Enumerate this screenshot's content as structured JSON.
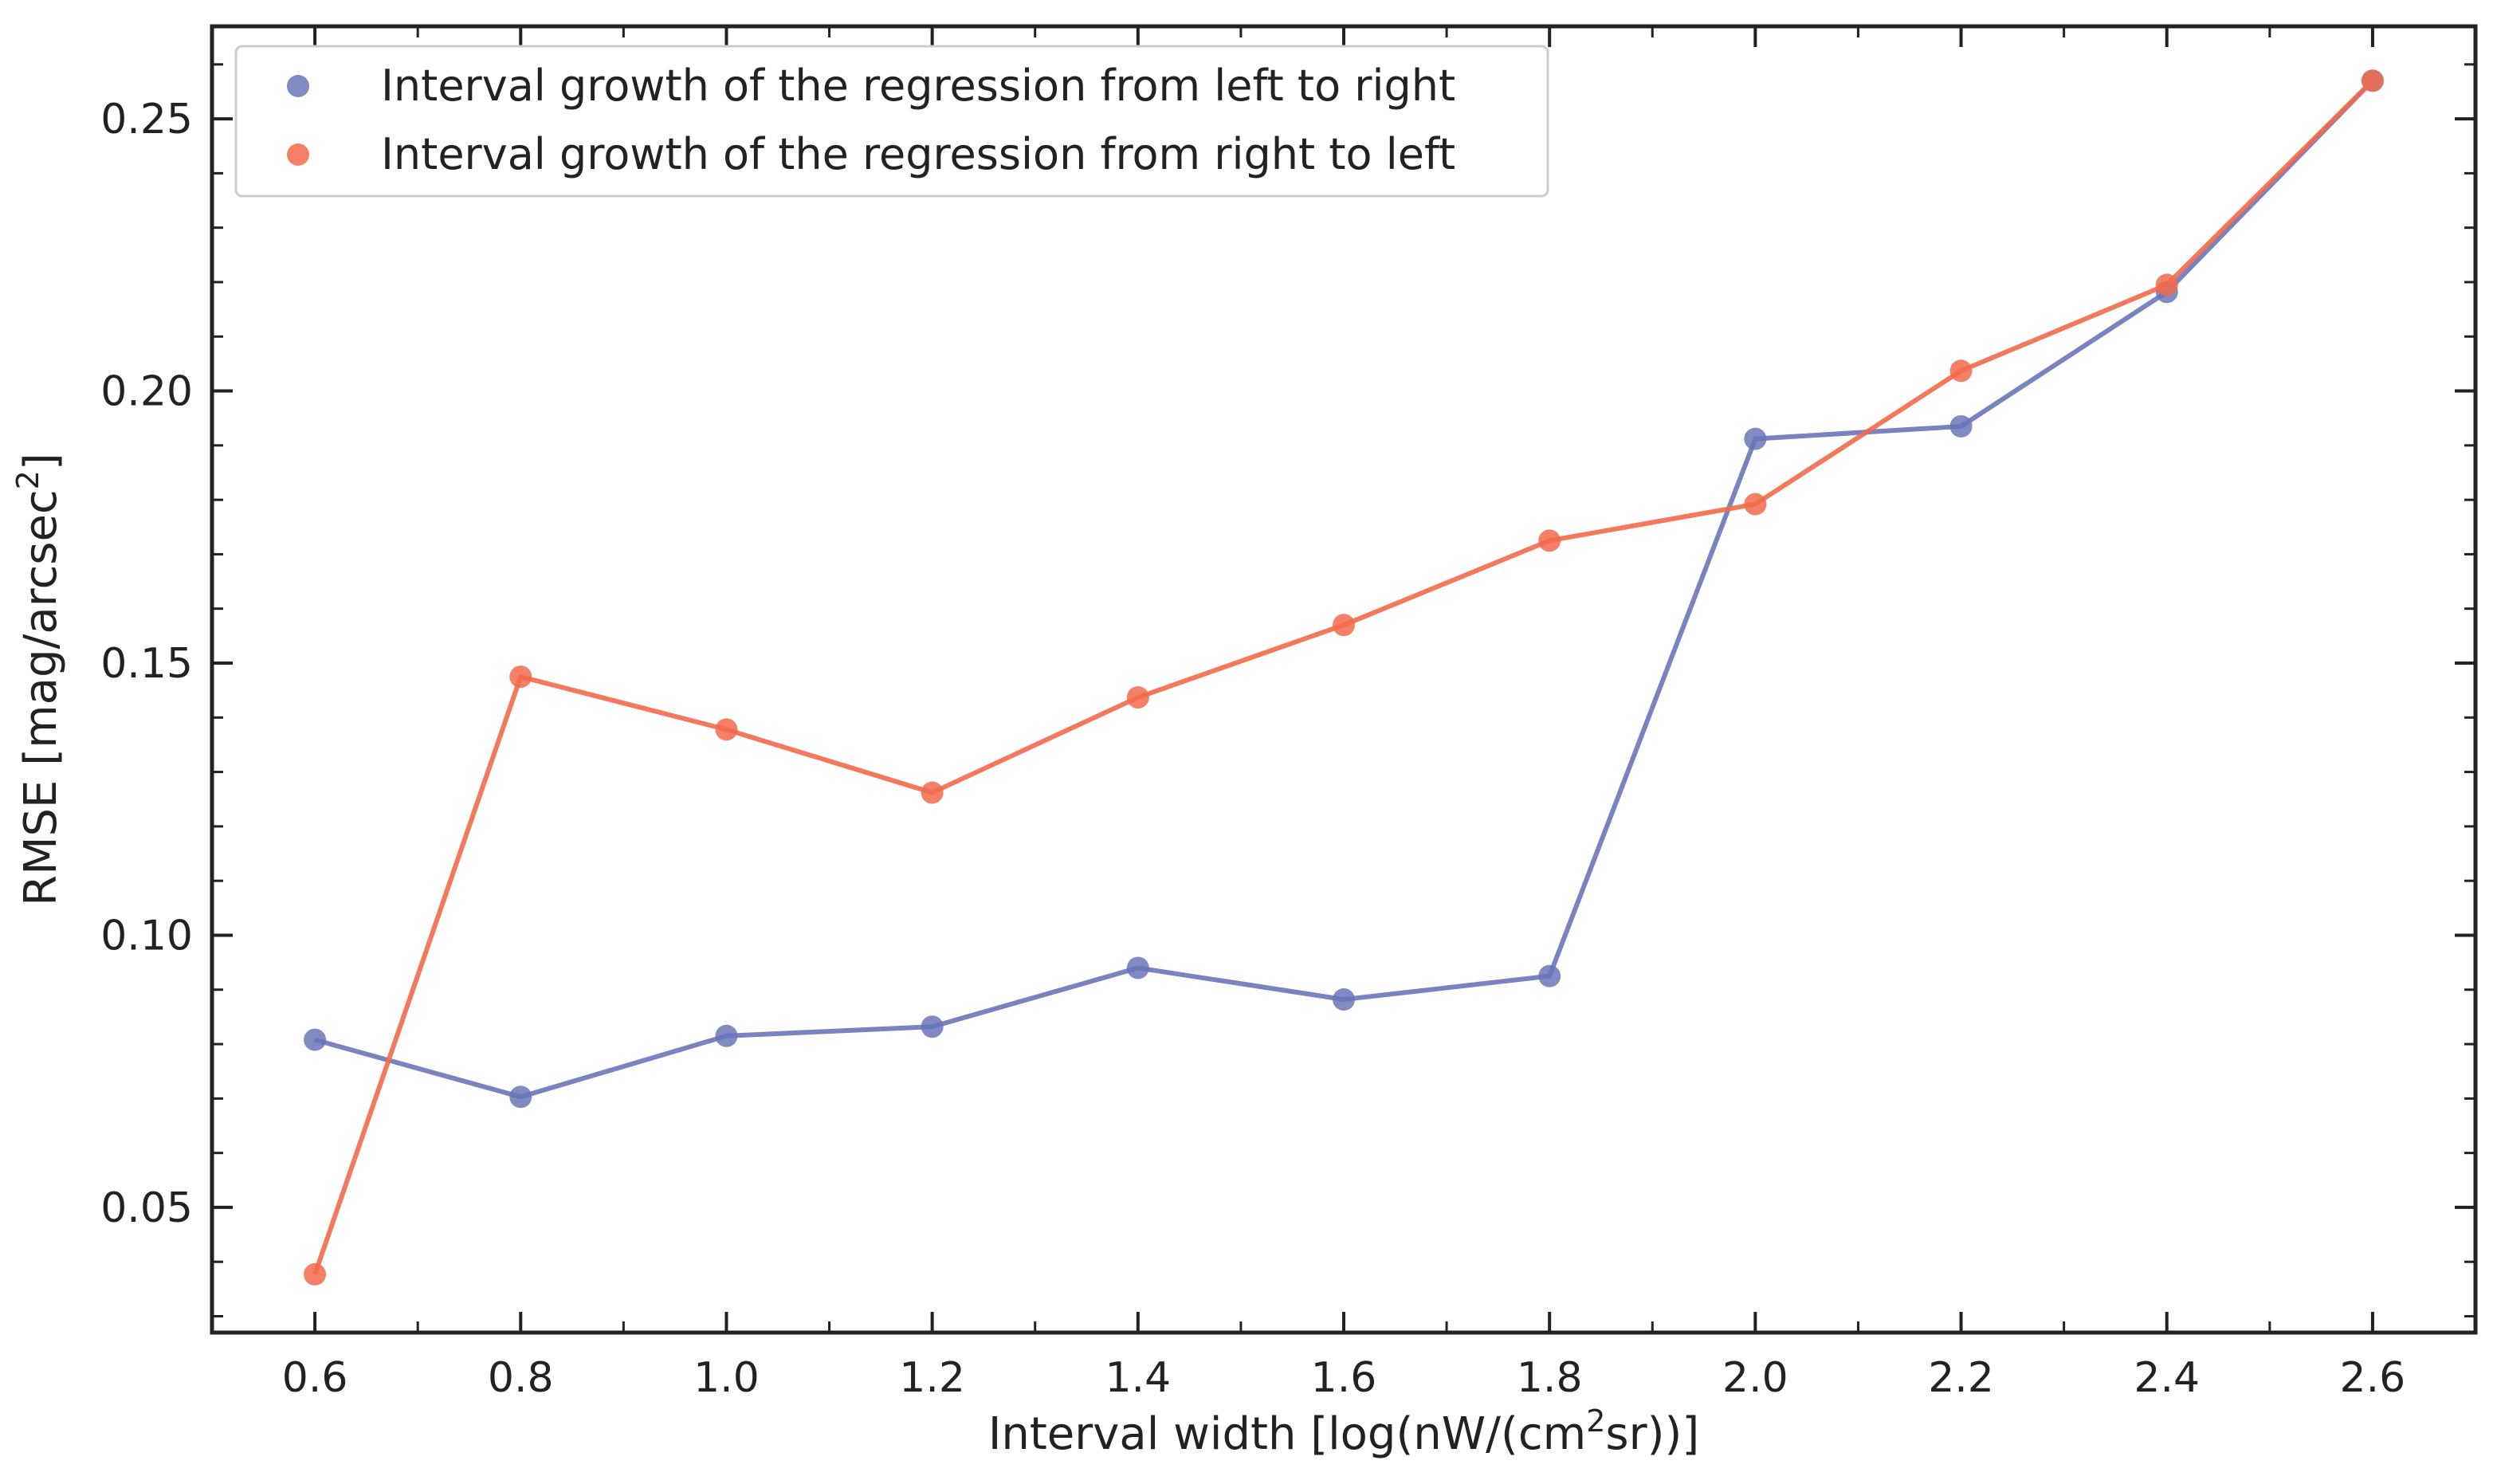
{
  "chart_data": {
    "type": "line",
    "title": "",
    "xlabel": "Interval width [log(nW/(cm²sr))]",
    "ylabel": "RMSE [mag/arcsec²]",
    "xlabel_parts": {
      "before": "Interval width [log(nW/(cm",
      "sup": "2",
      "after": "sr))]"
    },
    "ylabel_parts": {
      "before": "RMSE [mag/arcsec",
      "sup": "2",
      "after": "]"
    },
    "xlim": [
      0.5,
      2.7
    ],
    "ylim": [
      0.027,
      0.267
    ],
    "xticks": [
      0.6,
      0.8,
      1.0,
      1.2,
      1.4,
      1.6,
      1.8,
      2.0,
      2.2,
      2.4,
      2.6
    ],
    "xtick_labels": [
      "0.6",
      "0.8",
      "1.0",
      "1.2",
      "1.4",
      "1.6",
      "1.8",
      "2.0",
      "2.2",
      "2.4",
      "2.6"
    ],
    "yticks": [
      0.05,
      0.1,
      0.15,
      0.2,
      0.25
    ],
    "ytick_labels": [
      "0.05",
      "0.10",
      "0.15",
      "0.20",
      "0.25"
    ],
    "grid": false,
    "legend_position": "top-left",
    "x": [
      0.6,
      0.8,
      1.0,
      1.2,
      1.4,
      1.6,
      1.8,
      2.0,
      2.2,
      2.4,
      2.6
    ],
    "series": [
      {
        "name": "Interval growth of the regression from left to right",
        "color": "#6a75b8",
        "values": [
          0.0808,
          0.0703,
          0.0815,
          0.0832,
          0.094,
          0.0882,
          0.0925,
          0.1912,
          0.1935,
          0.2182,
          0.257
        ]
      },
      {
        "name": "Interval growth of the regression from right to left",
        "color": "#f26a4b",
        "values": [
          0.0377,
          0.1475,
          0.1378,
          0.1262,
          0.1437,
          0.157,
          0.1725,
          0.1792,
          0.2037,
          0.2195,
          0.257
        ]
      }
    ]
  }
}
